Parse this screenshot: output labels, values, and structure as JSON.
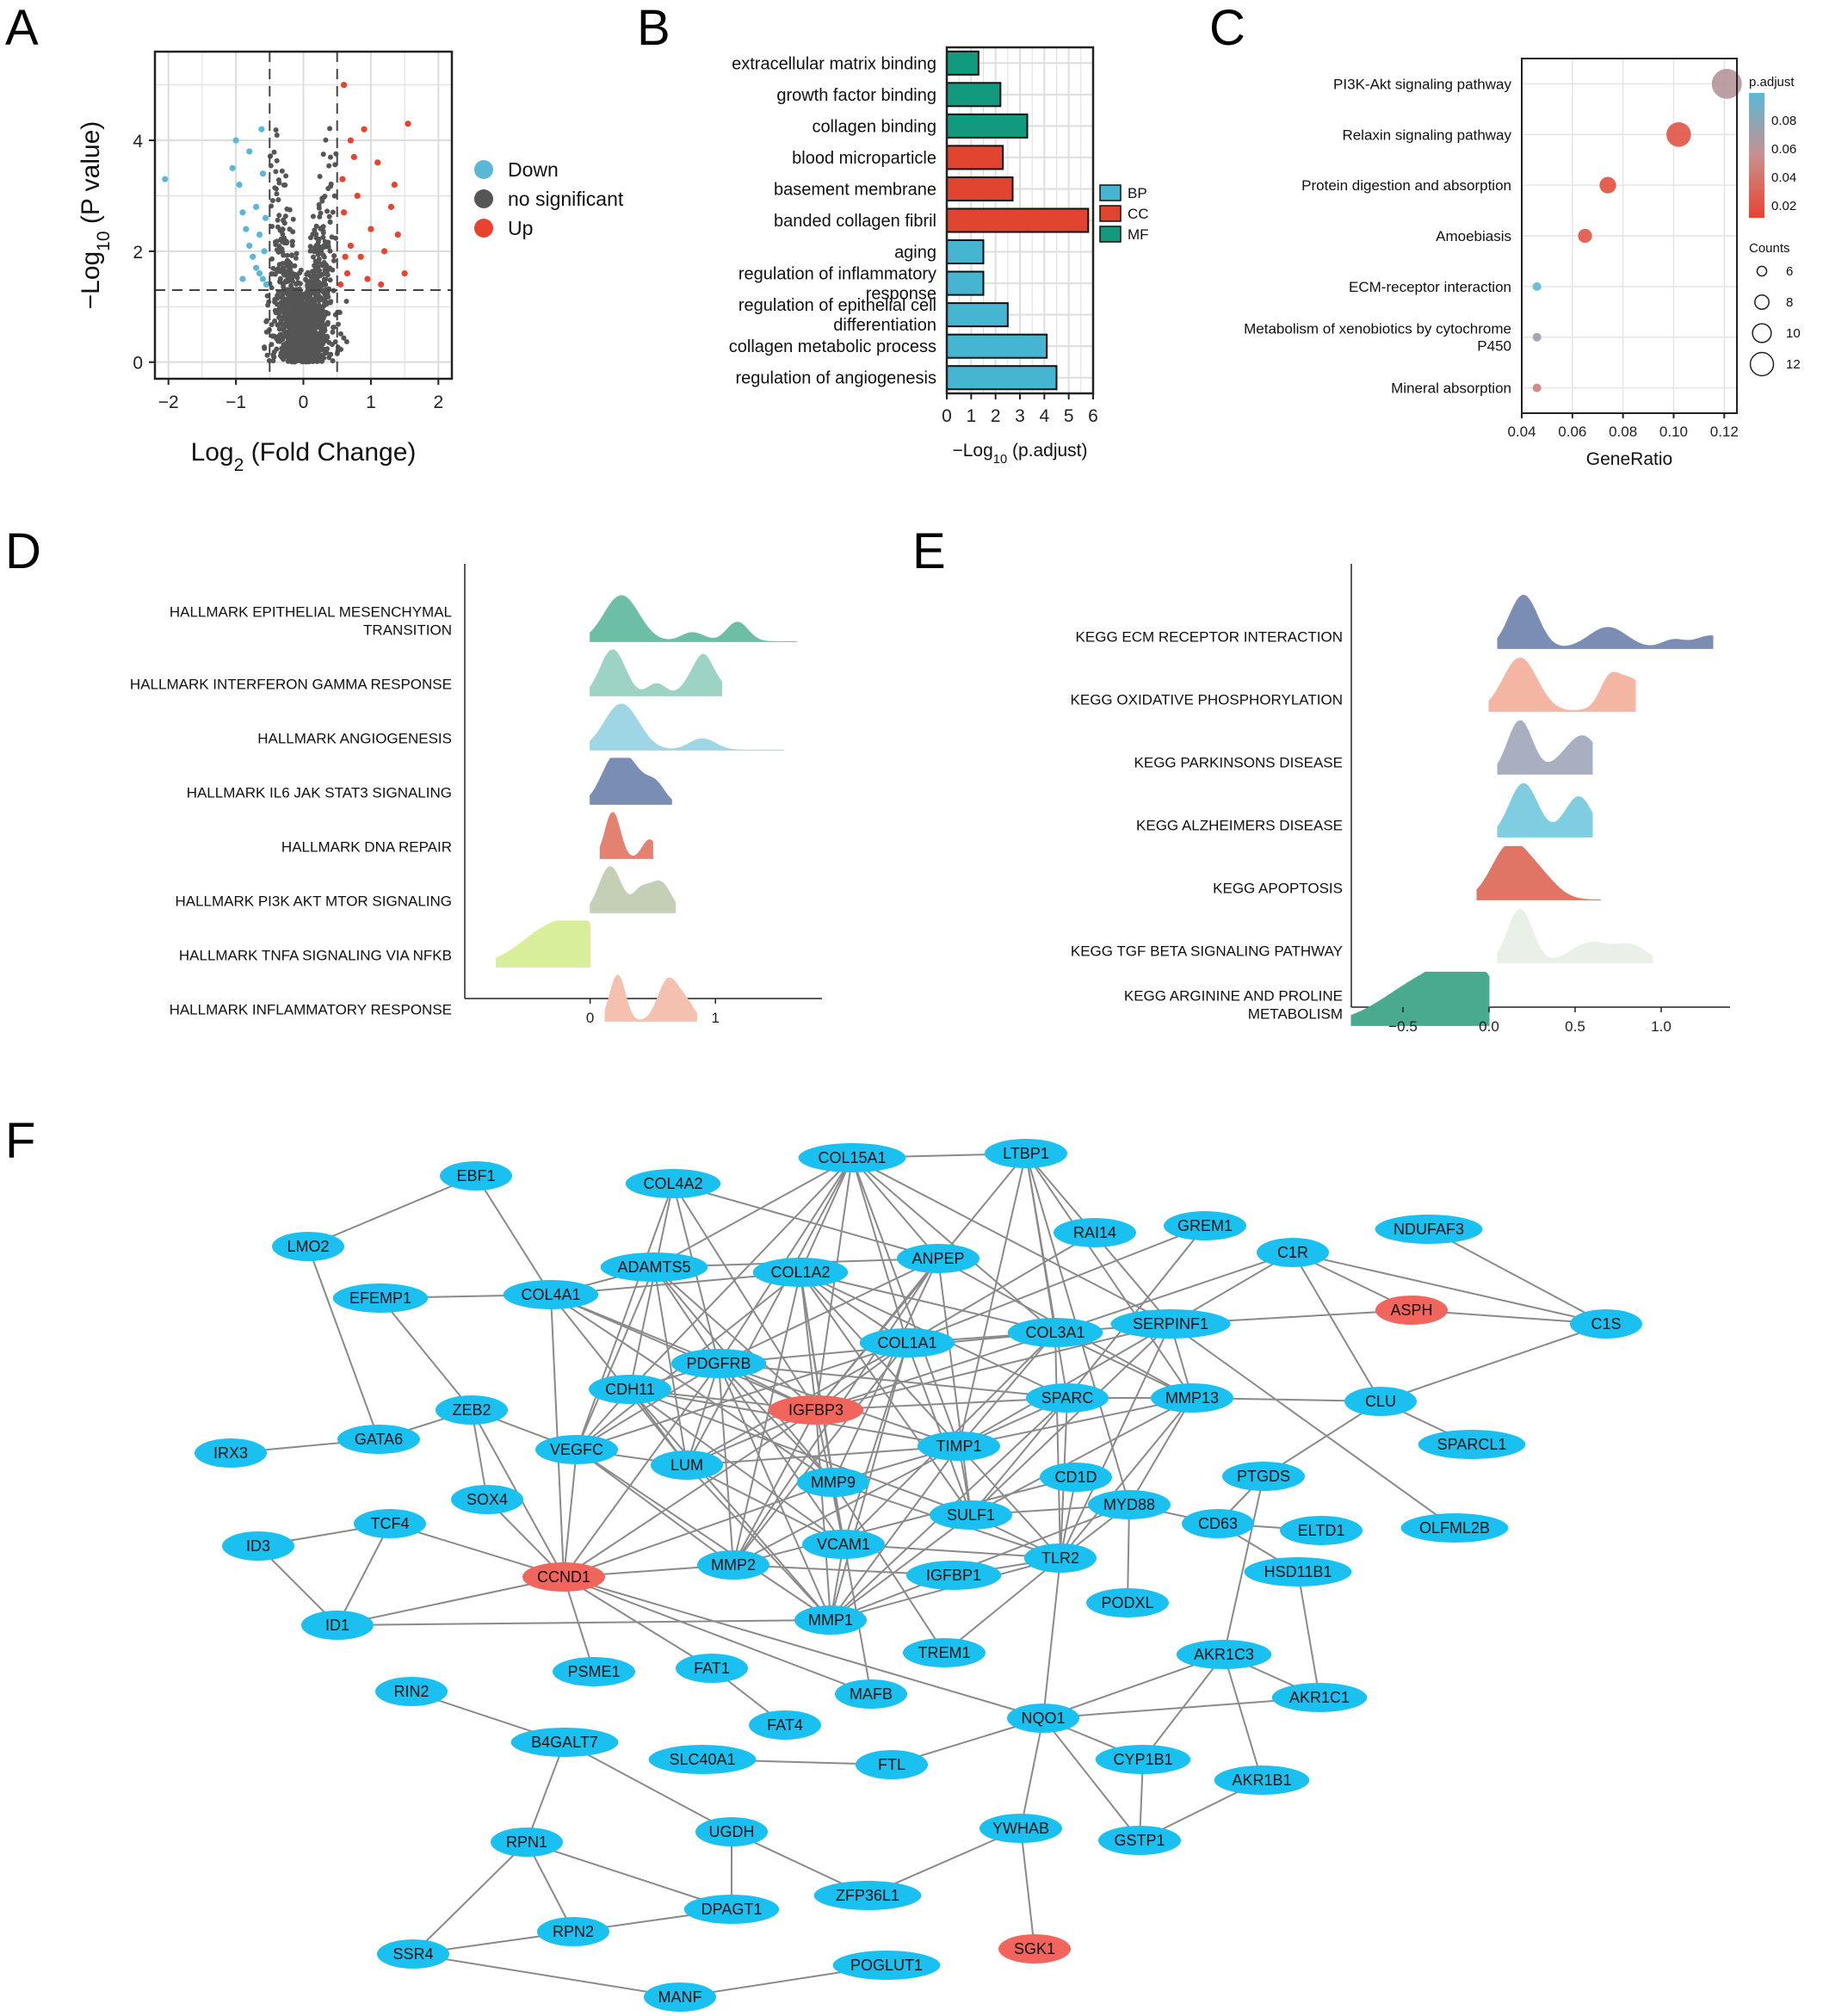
{
  "panels": {
    "A": {
      "label": "A",
      "chart_data": {
        "type": "scatter",
        "xlabel": "Log2 (Fold Change)",
        "ylabel": "-Log10 (P value)",
        "xlim": [
          -2.2,
          2.2
        ],
        "ylim": [
          -0.3,
          5.6
        ],
        "xticks": [
          "-2",
          "-1",
          "0",
          "1",
          "2"
        ],
        "yticks": [
          "0",
          "2",
          "4"
        ],
        "thresholds": {
          "log2fc": [
            -0.5,
            0.5
          ],
          "neglog10p": 1.3
        },
        "grid": true,
        "legend": [
          {
            "name": "Down",
            "color": "#5ab8d6"
          },
          {
            "name": "no significant",
            "color": "#555555"
          },
          {
            "name": "Up",
            "color": "#e8432f"
          }
        ],
        "series": [
          {
            "name": "Down",
            "points": [
              [
                -2.05,
                3.3
              ],
              [
                -1.0,
                4.0
              ],
              [
                -1.05,
                3.5
              ],
              [
                -0.95,
                3.2
              ],
              [
                -0.9,
                2.7
              ],
              [
                -0.85,
                2.4
              ],
              [
                -0.8,
                2.1
              ],
              [
                -0.75,
                1.9
              ],
              [
                -0.7,
                1.7
              ],
              [
                -0.65,
                1.6
              ],
              [
                -0.6,
                1.5
              ],
              [
                -0.55,
                1.4
              ],
              [
                -0.7,
                2.8
              ],
              [
                -0.6,
                3.4
              ],
              [
                -0.65,
                2.3
              ],
              [
                -0.58,
                2.0
              ],
              [
                -0.8,
                3.8
              ],
              [
                -0.62,
                4.2
              ],
              [
                -0.9,
                1.5
              ],
              [
                -0.56,
                2.6
              ]
            ]
          },
          {
            "name": "Up",
            "points": [
              [
                0.6,
                5.0
              ],
              [
                1.55,
                4.3
              ],
              [
                0.9,
                4.2
              ],
              [
                1.1,
                3.6
              ],
              [
                1.3,
                2.8
              ],
              [
                1.4,
                2.3
              ],
              [
                1.5,
                1.6
              ],
              [
                1.2,
                2.0
              ],
              [
                1.0,
                2.4
              ],
              [
                0.8,
                3.0
              ],
              [
                0.7,
                2.1
              ],
              [
                0.65,
                1.6
              ],
              [
                0.55,
                1.4
              ],
              [
                0.75,
                3.7
              ],
              [
                0.95,
                1.5
              ],
              [
                0.6,
                2.7
              ],
              [
                1.15,
                1.4
              ],
              [
                0.85,
                1.9
              ],
              [
                0.58,
                3.3
              ],
              [
                1.35,
                3.2
              ],
              [
                0.7,
                4.0
              ],
              [
                0.62,
                1.9
              ]
            ]
          }
        ]
      }
    },
    "B": {
      "label": "B",
      "chart_data": {
        "type": "bar",
        "orientation": "horizontal",
        "xlabel": "-Log10 (p.adjust)",
        "xlim": [
          0,
          6
        ],
        "xticks": [
          "0",
          "1",
          "2",
          "3",
          "4",
          "5",
          "6"
        ],
        "categories": [
          "extracellular matrix binding",
          "growth factor binding",
          "collagen binding",
          "blood microparticle",
          "basement membrane",
          "banded collagen fibril",
          "aging",
          "regulation of inflammatory response",
          "regulation of epithelial cell differentiation",
          "collagen metabolic process",
          "regulation of angiogenesis"
        ],
        "values": [
          1.3,
          2.2,
          3.3,
          2.3,
          2.7,
          5.8,
          1.5,
          1.5,
          2.5,
          4.1,
          4.5
        ],
        "groups": [
          "MF",
          "MF",
          "MF",
          "CC",
          "CC",
          "CC",
          "BP",
          "BP",
          "BP",
          "BP",
          "BP"
        ],
        "legend": [
          {
            "name": "BP",
            "color": "#45b5d1"
          },
          {
            "name": "CC",
            "color": "#e2452f"
          },
          {
            "name": "MF",
            "color": "#129a7e"
          }
        ]
      }
    },
    "C": {
      "label": "C",
      "chart_data": {
        "type": "scatter",
        "subtype": "dotplot",
        "xlabel": "GeneRatio",
        "xlim": [
          0.04,
          0.125
        ],
        "xticks": [
          "0.04",
          "0.06",
          "0.08",
          "0.10",
          "0.12"
        ],
        "categories": [
          "PI3K-Akt signaling pathway",
          "Relaxin signaling pathway",
          "Protein digestion and absorption",
          "Amoebiasis",
          "ECM-receptor interaction",
          "Metabolism of xenobiotics by cytochrome P450",
          "Mineral absorption"
        ],
        "gene_ratio": [
          0.121,
          0.102,
          0.074,
          0.065,
          0.046,
          0.046,
          0.046
        ],
        "p_adjust": [
          0.055,
          0.015,
          0.012,
          0.015,
          0.09,
          0.065,
          0.04
        ],
        "counts": [
          13,
          11,
          8,
          7,
          5,
          5,
          5
        ],
        "legend_color_title": "p.adjust",
        "legend_color_ticks": [
          "0.08",
          "0.06",
          "0.04",
          "0.02"
        ],
        "legend_size_title": "Counts",
        "legend_size_ticks": [
          "6",
          "8",
          "10",
          "12"
        ],
        "color_low": "#e8432f",
        "color_high": "#5ab8d6"
      }
    },
    "D": {
      "label": "D",
      "chart_data": {
        "type": "area",
        "subtype": "ridgeline",
        "xlim": [
          -1.0,
          1.85
        ],
        "xticks": [
          "0",
          "1"
        ],
        "categories": [
          "HALLMARK EPITHELIAL MESENCHYMAL TRANSITION",
          "HALLMARK INTERFERON GAMMA RESPONSE",
          "HALLMARK ANGIOGENESIS",
          "HALLMARK IL6 JAK STAT3 SIGNALING",
          "HALLMARK DNA REPAIR",
          "HALLMARK PI3K AKT MTOR SIGNALING",
          "HALLMARK TNFA SIGNALING VIA NFKB",
          "HALLMARK INFLAMMATORY RESPONSE"
        ],
        "colors": [
          "#6cbfa6",
          "#9dd3c5",
          "#9fd6e6",
          "#7a8db5",
          "#e48272",
          "#c5cfb6",
          "#d9ee9a",
          "#f4c0b0"
        ],
        "peak": [
          0.25,
          0.18,
          0.25,
          0.2,
          0.18,
          0.16,
          -0.22,
          0.22
        ],
        "range": [
          [
            0.0,
            1.65
          ],
          [
            0.0,
            1.05
          ],
          [
            0.0,
            1.55
          ],
          [
            0.0,
            0.65
          ],
          [
            0.08,
            0.5
          ],
          [
            0.0,
            0.68
          ],
          [
            -0.75,
            0.0
          ],
          [
            0.12,
            0.85
          ]
        ]
      }
    },
    "E": {
      "label": "E",
      "chart_data": {
        "type": "area",
        "subtype": "ridgeline",
        "xlim": [
          -0.8,
          1.4
        ],
        "xticks": [
          "-0.5",
          "0.0",
          "0.5",
          "1.0"
        ],
        "categories": [
          "KEGG ECM RECEPTOR INTERACTION",
          "KEGG OXIDATIVE PHOSPHORYLATION",
          "KEGG PARKINSONS DISEASE",
          "KEGG ALZHEIMERS DISEASE",
          "KEGG APOPTOSIS",
          "KEGG TGF BETA SIGNALING PATHWAY",
          "KEGG ARGININE AND PROLINE METABOLISM"
        ],
        "colors": [
          "#7c8db4",
          "#f4b5a3",
          "#a9aec0",
          "#7fcde0",
          "#e17565",
          "#e9f0e8",
          "#4aaa8f"
        ],
        "peak": [
          0.2,
          0.18,
          0.18,
          0.2,
          0.12,
          0.18,
          -0.28
        ],
        "range": [
          [
            0.05,
            1.3
          ],
          [
            0.0,
            0.85
          ],
          [
            0.05,
            0.6
          ],
          [
            0.05,
            0.6
          ],
          [
            -0.07,
            0.65
          ],
          [
            0.05,
            0.95
          ],
          [
            -0.8,
            0.0
          ]
        ]
      }
    },
    "F": {
      "label": "F",
      "network": {
        "node_color_default": "#1ac0f0",
        "node_color_highlight": "#f2655d",
        "highlighted": [
          "IGFBP3",
          "CCND1",
          "ASPH",
          "SGK1"
        ],
        "nodes": [
          "EBF1",
          "COL4A2",
          "COL15A1",
          "LTBP1",
          "LMO2",
          "RAI14",
          "GREM1",
          "C1R",
          "NDUFAF3",
          "EFEMP1",
          "COL4A1",
          "ADAMTS5",
          "COL1A2",
          "ANPEP",
          "ASPH",
          "C1S",
          "SERPINF1",
          "COL3A1",
          "COL1A1",
          "PDGFRB",
          "CDH11",
          "IGFBP3",
          "SPARC",
          "MMP13",
          "CLU",
          "ZEB2",
          "IRX3",
          "GATA6",
          "VEGFC",
          "LUM",
          "TIMP1",
          "SPARCL1",
          "SOX4",
          "MMP9",
          "CD1D",
          "PTGDS",
          "MYD88",
          "SULF1",
          "CD63",
          "ELTD1",
          "TCF4",
          "OLFML2B",
          "ID3",
          "CCND1",
          "MMP2",
          "VCAM1",
          "TLR2",
          "HSD11B1",
          "IGFBP1",
          "ID1",
          "MMP1",
          "PODXL",
          "TREM1",
          "AKR1C3",
          "PSME1",
          "FAT1",
          "MAFB",
          "AKR1C1",
          "RIN2",
          "FAT4",
          "NQO1",
          "B4GALT7",
          "SLC40A1",
          "FTL",
          "CYP1B1",
          "AKR1B1",
          "UGDH",
          "YWHAB",
          "RPN1",
          "GSTP1",
          "ZFP36L1",
          "DPAGT1",
          "RPN2",
          "SSR4",
          "SGK1",
          "POGLUT1",
          "MANF"
        ]
      }
    }
  }
}
